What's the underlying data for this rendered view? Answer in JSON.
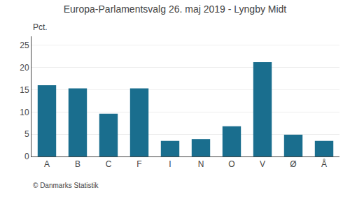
{
  "chart_data": {
    "type": "bar",
    "title": "Europa-Parlamentsvalg 26. maj 2019 - Lyngby Midt",
    "ylabel": "Pct.",
    "categories": [
      "A",
      "B",
      "C",
      "F",
      "I",
      "N",
      "O",
      "V",
      "Ø",
      "Å"
    ],
    "values": [
      16.0,
      15.3,
      9.6,
      15.3,
      3.5,
      3.9,
      6.8,
      21.2,
      4.9,
      3.5
    ],
    "color": "#1a6e8e",
    "ylim": [
      0,
      27
    ],
    "yticks": [
      0,
      5,
      10,
      15,
      20,
      25
    ],
    "grid": true,
    "annotations": [
      "© Danmarks Statistik"
    ]
  }
}
